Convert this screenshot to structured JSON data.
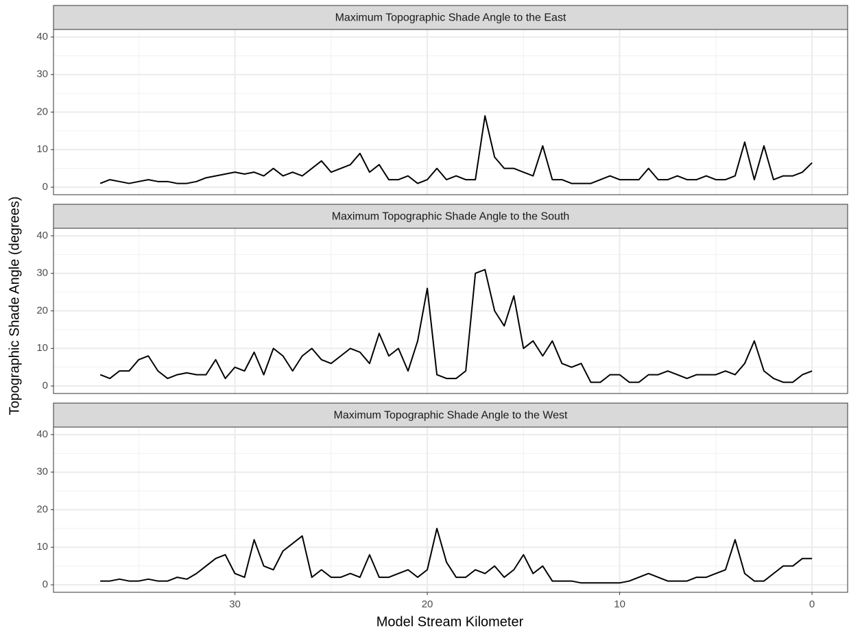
{
  "chart_data": {
    "type": "line",
    "x_label": "Model Stream Kilometer",
    "y_label": "Topographic Shade Angle (degrees)",
    "color": "#000000",
    "grid": true,
    "xlim": [
      39.43,
      -1.85
    ],
    "xticks": [
      30,
      20,
      10,
      0
    ],
    "minor_xticks": [
      35,
      25,
      15,
      5
    ],
    "ylim": [
      -2,
      42
    ],
    "yticks": [
      0,
      10,
      20,
      30,
      40
    ],
    "minor_yticks": [
      5,
      15,
      25,
      35
    ],
    "x": [
      37,
      36.5,
      36,
      35.5,
      35,
      34.5,
      34,
      33.5,
      33,
      32.5,
      32,
      31.5,
      31,
      30.5,
      30,
      29.5,
      29,
      28.5,
      28,
      27.5,
      27,
      26.5,
      26,
      25.5,
      25,
      24.5,
      24,
      23.5,
      23,
      22.5,
      22,
      21.5,
      21,
      20.5,
      20,
      19.5,
      19,
      18.5,
      18,
      17.5,
      17,
      16.5,
      16,
      15.5,
      15,
      14.5,
      14,
      13.5,
      13,
      12.5,
      12,
      11.5,
      11,
      10.5,
      10,
      9.5,
      9,
      8.5,
      8,
      7.5,
      7,
      6.5,
      6,
      5.5,
      5,
      4.5,
      4,
      3.5,
      3,
      2.5,
      2,
      1.5,
      1,
      0.5,
      0
    ],
    "facets": [
      {
        "title": "Maximum Topographic Shade Angle to the East",
        "values": [
          1,
          2,
          1.5,
          1,
          1.5,
          2,
          1.5,
          1.5,
          1,
          1,
          1.5,
          2.5,
          3,
          3.5,
          4,
          3.5,
          4,
          3,
          5,
          3,
          4,
          3,
          5,
          7,
          4,
          5,
          6,
          9,
          4,
          6,
          2,
          2,
          3,
          1,
          2,
          5,
          2,
          3,
          2,
          2,
          19,
          8,
          5,
          5,
          4,
          3,
          11,
          2,
          2,
          1,
          1,
          1,
          2,
          3,
          2,
          2,
          2,
          5,
          2,
          2,
          3,
          2,
          2,
          3,
          2,
          2,
          3,
          12,
          2,
          11,
          2,
          3,
          3,
          4,
          6.5
        ]
      },
      {
        "title": "Maximum Topographic Shade Angle to the South",
        "values": [
          3,
          2,
          4,
          4,
          7,
          8,
          4,
          2,
          3,
          3.5,
          3,
          3,
          7,
          2,
          5,
          4,
          9,
          3,
          10,
          8,
          4,
          8,
          10,
          7,
          6,
          8,
          10,
          9,
          6,
          14,
          8,
          10,
          4,
          12,
          26,
          3,
          2,
          2,
          4,
          30,
          31,
          20,
          16,
          24,
          10,
          12,
          8,
          12,
          6,
          5,
          6,
          1,
          1,
          3,
          3,
          1,
          1,
          3,
          3,
          4,
          3,
          2,
          3,
          3,
          3,
          4,
          3,
          6,
          12,
          4,
          2,
          1,
          1,
          3,
          4
        ]
      },
      {
        "title": "Maximum Topographic Shade Angle to the West",
        "values": [
          1,
          1,
          1.5,
          1,
          1,
          1.5,
          1,
          1,
          2,
          1.5,
          3,
          5,
          7,
          8,
          3,
          2,
          12,
          5,
          4,
          9,
          11,
          13,
          2,
          4,
          2,
          2,
          3,
          2,
          8,
          2,
          2,
          3,
          4,
          2,
          4,
          15,
          6,
          2,
          2,
          4,
          3,
          5,
          2,
          4,
          8,
          3,
          5,
          1,
          1,
          1,
          0.5,
          0.5,
          0.5,
          0.5,
          0.5,
          1,
          2,
          3,
          2,
          1,
          1,
          1,
          2,
          2,
          3,
          4,
          12,
          3,
          1,
          1,
          3,
          5,
          5,
          7,
          7
        ]
      }
    ]
  }
}
